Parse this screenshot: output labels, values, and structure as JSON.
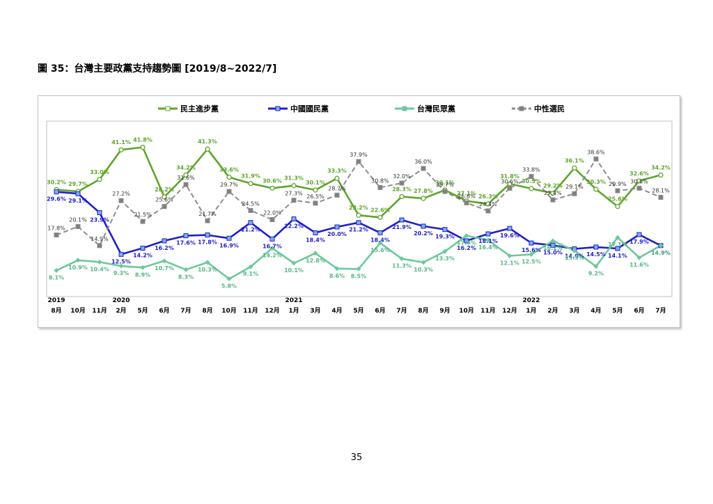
{
  "page": {
    "title": "圖 35：台灣主要政黨支持趨勢圖  [2019/8~2022/7]",
    "page_number": "35"
  },
  "chart_data": {
    "type": "line",
    "title": "",
    "xlabel": "",
    "ylabel": "",
    "grid": false,
    "legend_position": "top",
    "unit": "%",
    "categories": [
      "8月",
      "10月",
      "11月",
      "2月",
      "5月",
      "6月",
      "7月",
      "8月",
      "10月",
      "11月",
      "12月",
      "1月",
      "3月",
      "4月",
      "5月",
      "6月",
      "7月",
      "8月",
      "9月",
      "10月",
      "11月",
      "12月",
      "1月",
      "2月",
      "3月",
      "4月",
      "5月",
      "6月",
      "7月"
    ],
    "year_labels": [
      {
        "index": 0,
        "label": "2019"
      },
      {
        "index": 3,
        "label": "2020"
      },
      {
        "index": 11,
        "label": "2021"
      },
      {
        "index": 22,
        "label": "2022"
      }
    ],
    "series": [
      {
        "name": "民主進步黨",
        "color": "#5ea52a",
        "dash": "solid",
        "marker_fill": "#ffffff",
        "label_color": "#5ea52a",
        "values": [
          30.2,
          29.7,
          33.0,
          41.1,
          41.8,
          28.2,
          34.2,
          41.3,
          33.6,
          31.9,
          30.6,
          31.3,
          30.1,
          33.3,
          23.2,
          22.6,
          28.3,
          27.8,
          30.1,
          27.1,
          26.3,
          31.8,
          30.5,
          29.2,
          36.1,
          30.3,
          25.6,
          32.6,
          34.2
        ],
        "labels": [
          "30.2%",
          "29.7%",
          "33.0%",
          "41.1%",
          "41.8%",
          "28.2%",
          "34.2%",
          "41.3%",
          "33.6%",
          "31.9%",
          "30.6%",
          "31.3%",
          "30.1%",
          "33.3%",
          "23.2%",
          "22.6%",
          "28.3%",
          "27.8%",
          "30.1%",
          "27.1%",
          "26.3%",
          "31.8%",
          "30.5%",
          "29.2%",
          "36.1%",
          "30.3%",
          "25.6%",
          "32.6%",
          "34.2%"
        ]
      },
      {
        "name": "中國國民黨",
        "color": "#1f1fc9",
        "dash": "solid",
        "marker_fill": "#7ab0e8",
        "label_color": "#1f1fc9",
        "values": [
          29.6,
          29.1,
          23.9,
          12.5,
          14.2,
          16.2,
          17.6,
          17.8,
          16.9,
          21.2,
          16.7,
          22.2,
          18.4,
          20.0,
          21.2,
          18.4,
          21.9,
          20.2,
          19.3,
          16.2,
          18.1,
          19.6,
          15.6,
          15.0,
          14.0,
          14.5,
          14.1,
          17.9,
          14.9
        ],
        "labels": [
          "29.6%",
          "29.1%",
          "23.9%",
          "12.5%",
          "14.2%",
          "16.2%",
          "17.6%",
          "17.8%",
          "16.9%",
          "21.2%",
          "16.7%",
          "22.2%",
          "18.4%",
          "20.0%",
          "21.2%",
          "18.4%",
          "21.9%",
          "20.2%",
          "19.3%",
          "16.2%",
          "18.1%",
          "19.6%",
          "15.6%",
          "15.0%",
          "14.0%",
          "14.5%",
          "14.1%",
          "17.9%",
          "14.9%"
        ]
      },
      {
        "name": "台灣民眾黨",
        "color": "#6cc99a",
        "dash": "solid",
        "marker_fill": "#6cc99a",
        "label_color": "#57b585",
        "values": [
          8.1,
          10.9,
          10.4,
          9.3,
          8.9,
          10.7,
          8.3,
          10.3,
          5.8,
          9.1,
          14.2,
          10.1,
          12.8,
          8.6,
          8.5,
          15.6,
          11.3,
          10.3,
          13.3,
          17.6,
          16.4,
          12.1,
          12.5,
          16.2,
          13.5,
          9.2,
          17.1,
          11.6,
          14.9
        ],
        "labels": [
          "8.1%",
          "10.9%",
          "10.4%",
          "9.3%",
          "8.9%",
          "10.7%",
          "8.3%",
          "10.3%",
          "5.8%",
          "9.1%",
          "14.2%",
          "10.1%",
          "12.8%",
          "8.6%",
          "8.5%",
          "15.6%",
          "11.3%",
          "10.3%",
          "13.3%",
          "17.6%",
          "16.4%",
          "12.1%",
          "12.5%",
          "16.2%",
          "13.5%",
          "9.2%",
          "17.1%",
          "11.6%",
          "14.9%"
        ]
      },
      {
        "name": "中性選民",
        "color": "#8c8c8c",
        "dash": "dashed",
        "marker_fill": "#7f7f7f",
        "label_color": "#333333",
        "values": [
          17.8,
          20.1,
          14.9,
          27.2,
          21.5,
          25.6,
          31.6,
          21.7,
          29.7,
          24.5,
          22.0,
          27.3,
          26.5,
          28.7,
          37.9,
          30.8,
          32.0,
          36.0,
          29.7,
          26.6,
          24.4,
          30.6,
          33.8,
          27.4,
          29.1,
          38.6,
          29.9,
          30.6,
          28.1
        ],
        "labels": [
          "17.8%",
          "20.1%",
          "14.9%",
          "27.2%",
          "21.5%",
          "25.6%",
          "31.6%",
          "21.7%",
          "29.7%",
          "24.5%",
          "22.0%",
          "27.3%",
          "26.5%",
          "28.7%",
          "37.9%",
          "30.8%",
          "32.0%",
          "36.0%",
          "29.7%",
          "26.6%",
          "24.4%",
          "30.6%",
          "33.8%",
          "27.4%",
          "29.1%",
          "38.6%",
          "29.9%",
          "30.6%",
          "28.1%"
        ]
      }
    ]
  }
}
